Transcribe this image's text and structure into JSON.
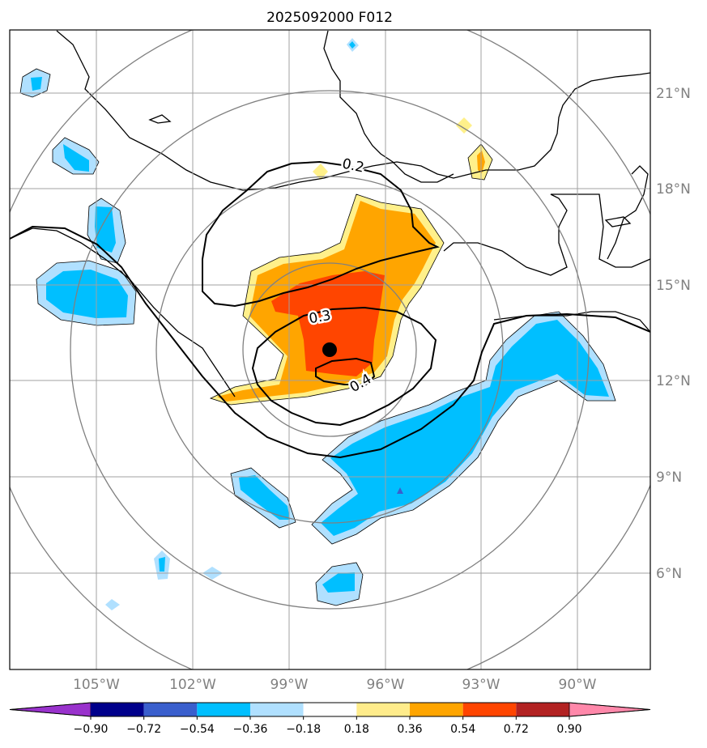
{
  "title": "2025092000 F012",
  "lon_labels": [
    "105°W",
    "102°W",
    "99°W",
    "96°W",
    "93°W",
    "90°W"
  ],
  "lat_labels": [
    "21°N",
    "18°N",
    "15°N",
    "12°N",
    "9°N",
    "6°N"
  ],
  "contour_labels": [
    "0.2",
    "0.3",
    "0.4"
  ],
  "colorbar": {
    "ticks": [
      "−0.90",
      "−0.72",
      "−0.54",
      "−0.36",
      "−0.18",
      "0.18",
      "0.36",
      "0.54",
      "0.72",
      "0.90"
    ],
    "colors": [
      "#9932cc",
      "#00008b",
      "#3a5fcd",
      "#00bfff",
      "#b0e0ff",
      "#ffffff",
      "#ffec8b",
      "#ffa500",
      "#ff4500",
      "#b22222",
      "#ff88aa"
    ]
  },
  "colors": {
    "positive_light": "#fff08a",
    "positive_mid": "#ffa500",
    "positive_high": "#ff4500",
    "negative_mid": "#00bfff",
    "negative_light": "#b0e0ff",
    "grid": "#808080",
    "label": "#808080"
  }
}
